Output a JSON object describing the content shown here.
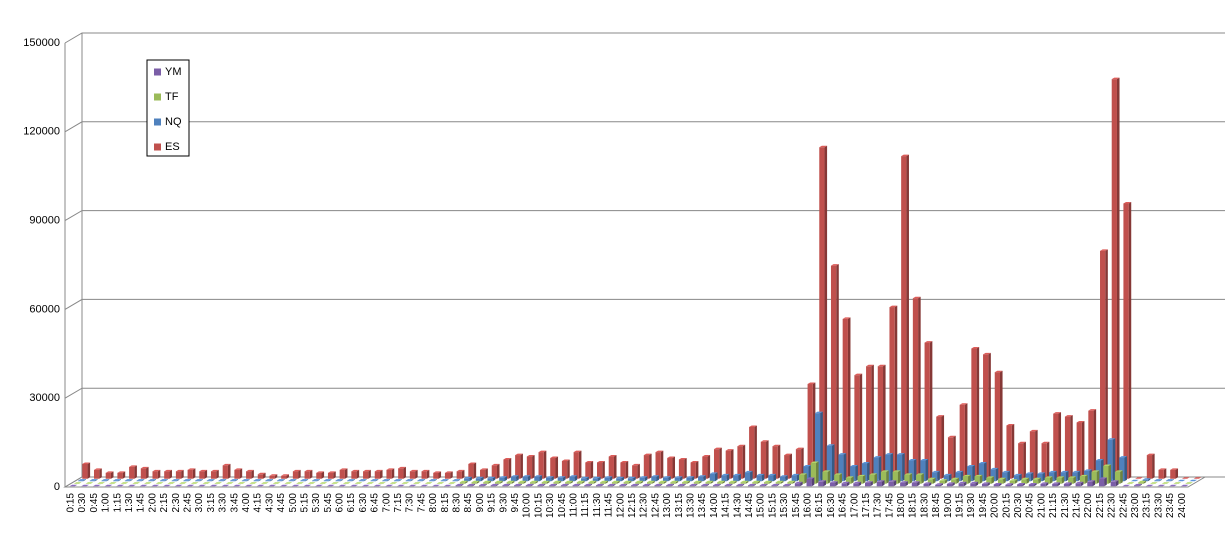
{
  "chart_data": {
    "type": "bar3d",
    "categories": [
      "0:15",
      "0:30",
      "0:45",
      "1:00",
      "1:15",
      "1:30",
      "1:45",
      "2:00",
      "2:15",
      "2:30",
      "2:45",
      "3:00",
      "3:15",
      "3:30",
      "3:45",
      "4:00",
      "4:15",
      "4:30",
      "4:45",
      "5:00",
      "5:15",
      "5:30",
      "5:45",
      "6:00",
      "6:15",
      "6:30",
      "6:45",
      "7:00",
      "7:15",
      "7:30",
      "7:45",
      "8:00",
      "8:15",
      "8:30",
      "8:45",
      "9:00",
      "9:15",
      "9:30",
      "9:45",
      "10:00",
      "10:15",
      "10:30",
      "10:45",
      "11:00",
      "11:15",
      "11:30",
      "11:45",
      "12:00",
      "12:15",
      "12:30",
      "12:45",
      "13:00",
      "13:15",
      "13:30",
      "13:45",
      "14:00",
      "14:15",
      "14:30",
      "14:45",
      "15:00",
      "15:15",
      "15:30",
      "15:45",
      "16:00",
      "16:15",
      "16:30",
      "16:45",
      "17:00",
      "17:15",
      "17:30",
      "17:45",
      "18:00",
      "18:15",
      "18:30",
      "18:45",
      "19:00",
      "19:15",
      "19:30",
      "19:45",
      "20:00",
      "20:15",
      "20:30",
      "20:45",
      "21:00",
      "21:15",
      "21:30",
      "21:45",
      "22:00",
      "22:15",
      "22:30",
      "22:45",
      "23:00",
      "23:15",
      "23:30",
      "23:45",
      "24:00"
    ],
    "series": [
      {
        "name": "YM",
        "color": "#7b5ea7",
        "values": [
          0,
          0,
          0,
          0,
          0,
          0,
          0,
          0,
          0,
          0,
          0,
          0,
          0,
          0,
          0,
          0,
          0,
          0,
          0,
          0,
          0,
          0,
          0,
          0,
          0,
          0,
          0,
          0,
          0,
          0,
          0,
          0,
          0,
          300,
          300,
          300,
          300,
          300,
          300,
          300,
          300,
          300,
          300,
          300,
          300,
          300,
          300,
          300,
          300,
          300,
          300,
          300,
          300,
          300,
          300,
          300,
          300,
          300,
          300,
          300,
          300,
          300,
          1000,
          2500,
          1500,
          1200,
          1000,
          1000,
          1200,
          1500,
          1500,
          1200,
          1200,
          800,
          500,
          800,
          1000,
          1000,
          800,
          600,
          500,
          600,
          600,
          800,
          800,
          800,
          1000,
          1500,
          2500,
          1500,
          0,
          300,
          0,
          0,
          0,
          0
        ]
      },
      {
        "name": "TF",
        "color": "#9bbb59",
        "values": [
          0,
          0,
          0,
          0,
          0,
          0,
          0,
          0,
          0,
          0,
          0,
          0,
          0,
          0,
          0,
          0,
          0,
          0,
          0,
          0,
          0,
          0,
          0,
          0,
          0,
          0,
          0,
          0,
          0,
          0,
          0,
          0,
          0,
          500,
          500,
          500,
          500,
          500,
          500,
          500,
          500,
          500,
          500,
          500,
          500,
          500,
          500,
          500,
          500,
          500,
          500,
          500,
          500,
          500,
          500,
          500,
          500,
          500,
          500,
          500,
          500,
          500,
          3000,
          7000,
          4000,
          3000,
          2000,
          2500,
          3000,
          4000,
          4000,
          3000,
          3000,
          1500,
          1000,
          1500,
          2500,
          2500,
          2000,
          1500,
          1000,
          1500,
          1500,
          2000,
          2000,
          2000,
          2500,
          4000,
          6000,
          4000,
          0,
          500,
          0,
          0,
          0,
          0
        ]
      },
      {
        "name": "NQ",
        "color": "#4f81bd",
        "values": [
          200,
          200,
          200,
          200,
          200,
          200,
          200,
          200,
          200,
          200,
          200,
          200,
          200,
          200,
          200,
          200,
          200,
          200,
          200,
          200,
          200,
          200,
          200,
          200,
          200,
          200,
          200,
          200,
          200,
          200,
          200,
          200,
          200,
          1000,
          1000,
          1000,
          1200,
          1500,
          1500,
          1500,
          1200,
          1200,
          1500,
          1000,
          1000,
          1200,
          1000,
          1000,
          1200,
          1500,
          1200,
          1200,
          1200,
          1500,
          2500,
          2000,
          2000,
          3000,
          2000,
          2000,
          1500,
          2000,
          5000,
          23000,
          12000,
          9000,
          5000,
          6000,
          8000,
          9000,
          9000,
          7000,
          7000,
          3000,
          2000,
          3000,
          5000,
          6000,
          4000,
          3000,
          2000,
          2500,
          2500,
          3000,
          3000,
          3000,
          3500,
          7000,
          14000,
          8000,
          0,
          500,
          200,
          200,
          0,
          0
        ]
      },
      {
        "name": "ES",
        "color": "#c0504d",
        "values": [
          5000,
          3000,
          2000,
          2000,
          4000,
          3500,
          2500,
          2500,
          2500,
          3000,
          2500,
          2500,
          4500,
          3000,
          2500,
          1500,
          1000,
          1000,
          2500,
          2500,
          2000,
          2000,
          3000,
          2500,
          2500,
          2500,
          3000,
          3500,
          2500,
          2500,
          2000,
          2000,
          2500,
          5000,
          3000,
          4500,
          6500,
          8000,
          7500,
          9000,
          7000,
          6000,
          9000,
          5500,
          5500,
          7500,
          5500,
          4500,
          8000,
          9000,
          7000,
          6500,
          5500,
          7500,
          10000,
          9500,
          11000,
          17500,
          12500,
          11000,
          8000,
          10000,
          32000,
          112000,
          72000,
          54000,
          35000,
          38000,
          38000,
          58000,
          109000,
          61000,
          46000,
          21000,
          14000,
          25000,
          44000,
          42000,
          36000,
          18000,
          12000,
          16000,
          12000,
          22000,
          21000,
          19000,
          23000,
          77000,
          135000,
          93000,
          0,
          8000,
          3000,
          3000,
          0,
          0
        ]
      }
    ],
    "ylim": [
      0,
      150000
    ],
    "yticks": [
      0,
      30000,
      60000,
      90000,
      120000,
      150000
    ],
    "grid": true
  }
}
